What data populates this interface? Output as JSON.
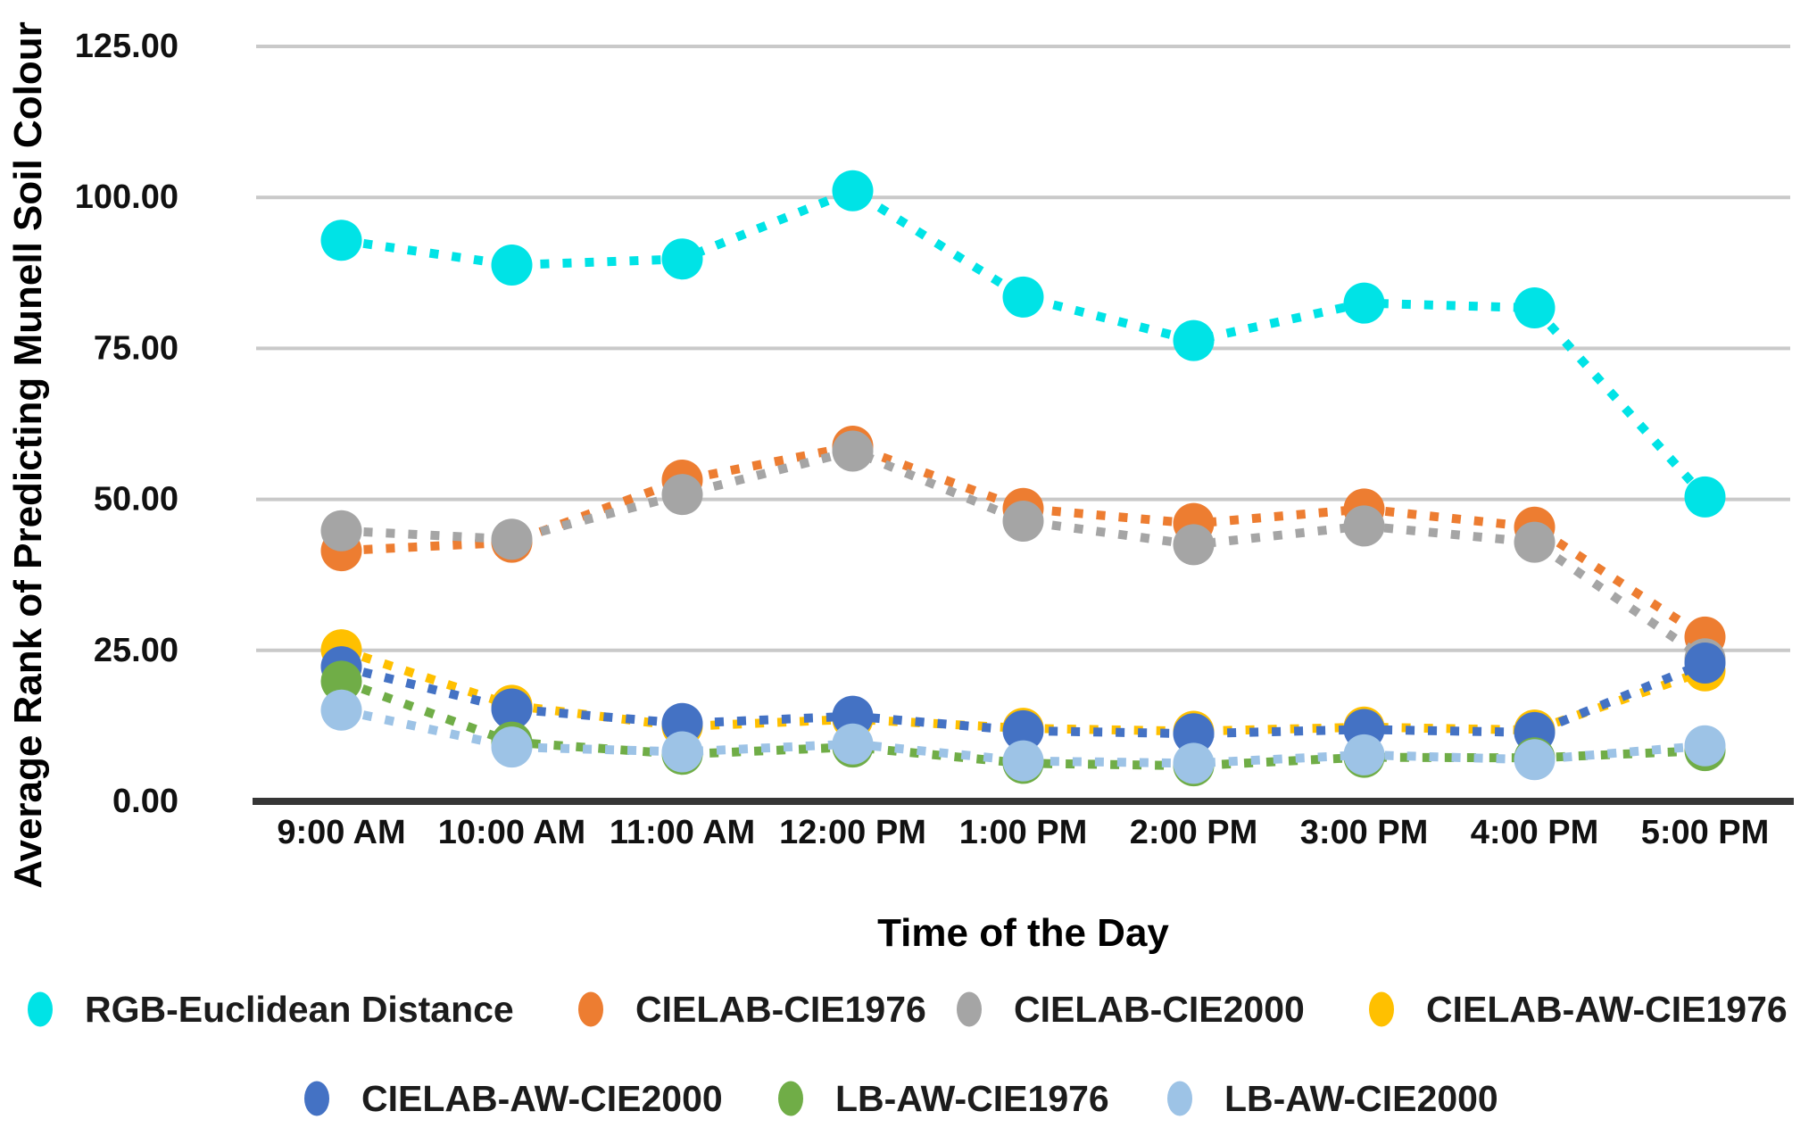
{
  "chart_data": {
    "type": "line",
    "title": "",
    "xlabel": "Time of the Day",
    "ylabel": "Average Rank of Predicting Munell Soil Colour",
    "categories": [
      "9:00 AM",
      "10:00 AM",
      "11:00 AM",
      "12:00 PM",
      "1:00 PM",
      "2:00 PM",
      "3:00 PM",
      "4:00 PM",
      "5:00 PM"
    ],
    "ylim": [
      0,
      125
    ],
    "y_tick_step": 25,
    "y_tick_decimals": 2,
    "grid": "horizontal",
    "line_style": "dotted",
    "marker": "circle",
    "legend_position": "bottom",
    "legend_rows": [
      [
        0,
        1,
        2,
        3
      ],
      [
        4,
        5,
        6
      ]
    ],
    "series": [
      {
        "name": "RGB-Euclidean Distance",
        "color": "#00E3E6",
        "values": [
          92.9,
          88.8,
          89.8,
          101.1,
          83.5,
          76.3,
          82.5,
          81.7,
          50.4
        ]
      },
      {
        "name": "CIELAB-CIE1976",
        "color": "#ED7D31",
        "values": [
          41.5,
          42.9,
          53.2,
          58.8,
          48.5,
          46.0,
          48.4,
          45.4,
          27.2
        ]
      },
      {
        "name": "CIELAB-CIE2000",
        "color": "#A5A5A5",
        "values": [
          44.8,
          43.4,
          50.8,
          58.0,
          46.4,
          42.5,
          45.6,
          42.9,
          23.6
        ]
      },
      {
        "name": "CIELAB-AW-CIE1976",
        "color": "#FFC000",
        "values": [
          25.1,
          15.9,
          12.4,
          13.6,
          12.1,
          11.6,
          12.3,
          11.8,
          21.6
        ]
      },
      {
        "name": "CIELAB-AW-CIE2000",
        "color": "#4472C4",
        "values": [
          22.3,
          15.3,
          12.9,
          14.1,
          11.7,
          11.2,
          11.9,
          11.4,
          22.9
        ]
      },
      {
        "name": "LB-AW-CIE1976",
        "color": "#70AD47",
        "values": [
          19.9,
          9.8,
          7.8,
          9.0,
          6.3,
          5.9,
          7.3,
          7.2,
          8.4
        ]
      },
      {
        "name": "LB-AW-CIE2000",
        "color": "#9DC3E6",
        "values": [
          15.1,
          9.0,
          8.2,
          9.5,
          6.7,
          6.3,
          7.7,
          6.9,
          9.2
        ]
      }
    ],
    "colors": {
      "gridline": "#C9C9C9",
      "axis_line": "#363636",
      "text": "#111111"
    }
  }
}
